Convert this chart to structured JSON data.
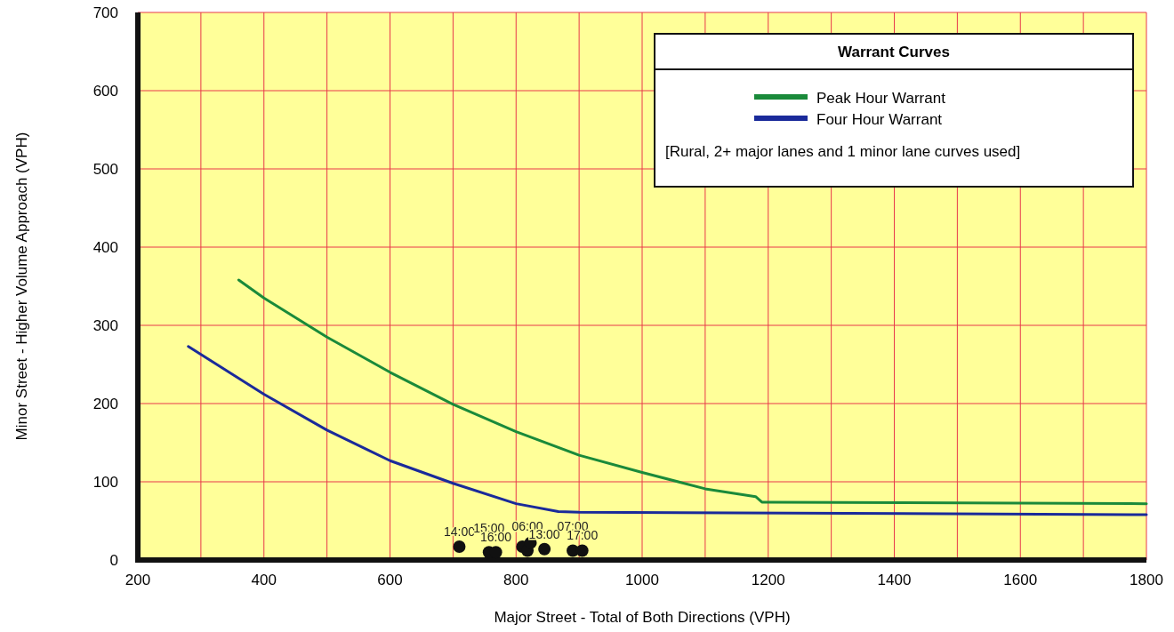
{
  "chart_data": {
    "type": "line",
    "xlabel": "Major Street - Total of Both Directions (VPH)",
    "ylabel": "Minor Street - Higher Volume Approach (VPH)",
    "legend_title": "Warrant Curves",
    "xlim": [
      200,
      1800
    ],
    "ylim": [
      0,
      700
    ],
    "xticks": [
      200,
      {
        "value": 300,
        "label": null
      },
      400,
      {
        "value": 500,
        "label": null
      },
      600,
      {
        "value": 700,
        "label": null
      },
      800,
      {
        "value": 900,
        "label": null
      },
      1000,
      {
        "value": 1100,
        "label": null
      },
      1200,
      {
        "value": 1300,
        "label": null
      },
      1400,
      {
        "value": 1500,
        "label": null
      },
      1600,
      {
        "value": 1700,
        "label": null
      },
      1800
    ],
    "yticks": [
      0,
      100,
      200,
      300,
      400,
      500,
      600,
      700
    ],
    "grid": true,
    "legend": "top right",
    "marker": "none",
    "line_style": "solid",
    "series": [
      {
        "name": "Peak Hour Warrant",
        "color": "#1a8a3a",
        "x": [
          360,
          400,
          500,
          600,
          700,
          800,
          900,
          1000,
          1100,
          1180,
          1190,
          1200,
          1800
        ],
        "values": [
          358,
          335,
          285,
          240,
          199,
          164,
          134,
          112,
          91,
          81,
          74,
          74,
          72
        ]
      },
      {
        "name": "Four Hour Warrant",
        "color": "#1a2a9a",
        "x": [
          280,
          400,
          500,
          600,
          700,
          800,
          867,
          900,
          1800
        ],
        "values": [
          273,
          212,
          166,
          127,
          98,
          72,
          62,
          61,
          58
        ]
      },
      {
        "type": "scatter",
        "marker": "circle",
        "color": "#111111",
        "x": [
          710,
          757,
          768,
          810,
          818,
          823,
          845,
          890,
          905
        ],
        "values": [
          17,
          10,
          10,
          17,
          12,
          22,
          14,
          12,
          12
        ]
      }
    ],
    "annotations": [
      "[Rural,  2+ major lanes and 1 minor lane curves used]",
      {
        "text": "14:00",
        "x": 710,
        "y": 17
      },
      {
        "text": "15:00",
        "x": 757,
        "y": 10
      },
      {
        "text": "16:00",
        "x": 768,
        "y": 10
      },
      {
        "text": "06:00",
        "x": 818,
        "y": 12
      },
      {
        "text": "13:00",
        "x": 845,
        "y": 14
      },
      {
        "text": "07:00",
        "x": 890,
        "y": 12
      },
      {
        "text": "17:00",
        "x": 905,
        "y": 12
      }
    ]
  }
}
